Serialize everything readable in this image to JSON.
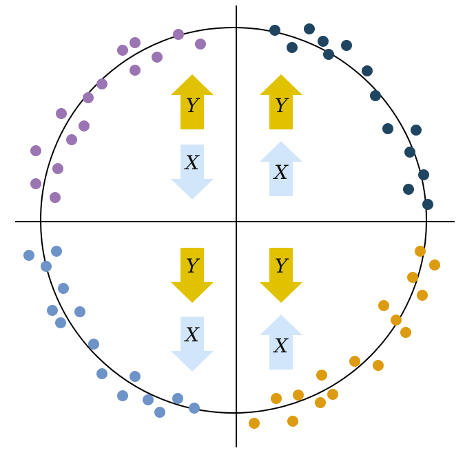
{
  "labels": {
    "y": "Y",
    "x": "X"
  },
  "quadrants": [
    {
      "id": "top-left",
      "y_dir": "up",
      "x_dir": "down"
    },
    {
      "id": "top-right",
      "y_dir": "up",
      "x_dir": "up"
    },
    {
      "id": "bottom-left",
      "y_dir": "down",
      "x_dir": "down"
    },
    {
      "id": "bottom-right",
      "y_dir": "down",
      "x_dir": "up"
    }
  ],
  "colors": {
    "axis": "#000000",
    "circle": "#000000",
    "y_arrow": "#e0c200",
    "x_arrow": "#d2e6fb",
    "cluster_top_left": "#9b75b3",
    "cluster_top_right": "#1f4560",
    "cluster_bottom_left": "#6d93c8",
    "cluster_bottom_right": "#dc9b10"
  },
  "clusters": [
    {
      "quadrant": "top-left",
      "color": "#9b75b3"
    },
    {
      "quadrant": "top-right",
      "color": "#1f4560"
    },
    {
      "quadrant": "bottom-left",
      "color": "#6d93c8"
    },
    {
      "quadrant": "bottom-right",
      "color": "#dc9b10"
    }
  ]
}
